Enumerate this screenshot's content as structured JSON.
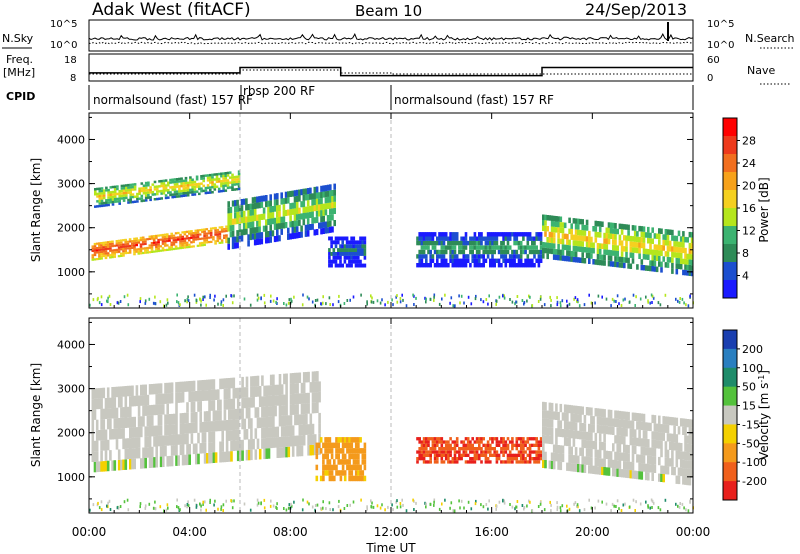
{
  "header": {
    "station": "Adak West (fitACF)",
    "beam": "Beam 10",
    "date": "24/Sep/2013"
  },
  "noise_panel": {
    "left_label": "N.Sky",
    "right_label": "N.Search",
    "left_ticks": [
      "10^5",
      "10^0"
    ],
    "right_ticks": [
      "10^5",
      "10^0"
    ]
  },
  "freq_panel": {
    "left_label_line1": "Freq.",
    "left_label_line2": "[MHz]",
    "right_label": "Nave",
    "left_ticks": [
      "18",
      "8"
    ],
    "right_ticks": [
      "60",
      "0"
    ]
  },
  "cpid_panel": {
    "label": "CPID",
    "modes": [
      {
        "name": "normalsound (fast) 157 RF",
        "start_hour": 0,
        "end_hour": 6
      },
      {
        "name": "rbsp 200 RF",
        "start_hour": 6,
        "end_hour": 12
      },
      {
        "name": "normalsound (fast) 157 RF",
        "start_hour": 12,
        "end_hour": 24
      }
    ]
  },
  "power_panel": {
    "ylabel": "Slant Range [km]",
    "yticks": [
      "1000",
      "2000",
      "3000",
      "4000"
    ],
    "cbar_label": "Power [dB]",
    "cbar_ticks": [
      "4",
      "8",
      "12",
      "16",
      "20",
      "24",
      "28"
    ],
    "cbar_colors": [
      "#1a1aff",
      "#1c4fcf",
      "#2e8b57",
      "#3cb371",
      "#b5e61d",
      "#f5d020",
      "#f7a21b",
      "#f26f1f",
      "#ee3a1c",
      "#ff0000"
    ]
  },
  "velocity_panel": {
    "ylabel": "Slant Range [km]",
    "yticks": [
      "1000",
      "2000",
      "3000",
      "4000"
    ],
    "cbar_label": "Velocity [m s^-1]",
    "cbar_ticks": [
      "200",
      "100",
      "50",
      "15",
      "-15",
      "-50",
      "-100",
      "-200"
    ],
    "cbar_colors": [
      "#1a3fb0",
      "#2a7fc0",
      "#1f8c6a",
      "#54c23c",
      "#c8c8c0",
      "#f4d000",
      "#f49a1c",
      "#f0601c",
      "#e8201c"
    ]
  },
  "xaxis": {
    "label": "Time UT",
    "ticks": [
      "00:00",
      "04:00",
      "08:00",
      "12:00",
      "16:00",
      "20:00",
      "00:00"
    ]
  },
  "chart_data": {
    "type": "heatmap",
    "title": "Adak West (fitACF) Beam 10 24/Sep/2013",
    "xlabel": "Time UT",
    "ylabel": "Slant Range [km]",
    "xlim_hours": [
      0,
      24
    ],
    "ylim_km": [
      180,
      4600
    ],
    "frequency_mhz": [
      {
        "start_hour": 0,
        "end_hour": 6,
        "value": 11
      },
      {
        "start_hour": 6,
        "end_hour": 10,
        "value": 13
      },
      {
        "start_hour": 10,
        "end_hour": 18,
        "value": 10
      },
      {
        "start_hour": 18,
        "end_hour": 24,
        "value": 13
      }
    ],
    "power_regions_db": [
      {
        "start_hour": 0.1,
        "end_hour": 5.5,
        "range_km": [
          1250,
          1650
        ],
        "value": 27
      },
      {
        "start_hour": 0.2,
        "end_hour": 6.0,
        "range_km": [
          2450,
          2900
        ],
        "value": 18
      },
      {
        "start_hour": 5.5,
        "end_hour": 9.8,
        "range_km": [
          1500,
          2600
        ],
        "value": 15
      },
      {
        "start_hour": 9.5,
        "end_hour": 11.0,
        "range_km": [
          1100,
          1800
        ],
        "value": 8
      },
      {
        "start_hour": 13.0,
        "end_hour": 18.0,
        "range_km": [
          1100,
          1900
        ],
        "value": 11
      },
      {
        "start_hour": 18.0,
        "end_hour": 24.0,
        "range_km": [
          1300,
          2300
        ],
        "value": 18
      }
    ],
    "velocity_regions_ms": [
      {
        "start_hour": 0.1,
        "end_hour": 9.2,
        "range_km": [
          1100,
          3000
        ],
        "value": 0
      },
      {
        "start_hour": 9.0,
        "end_hour": 11.0,
        "range_km": [
          900,
          1900
        ],
        "value": -60
      },
      {
        "start_hour": 13.0,
        "end_hour": 18.0,
        "range_km": [
          1300,
          1900
        ],
        "value": -200
      },
      {
        "start_hour": 18.0,
        "end_hour": 24.0,
        "range_km": [
          1200,
          2700
        ],
        "value": 0
      }
    ]
  }
}
